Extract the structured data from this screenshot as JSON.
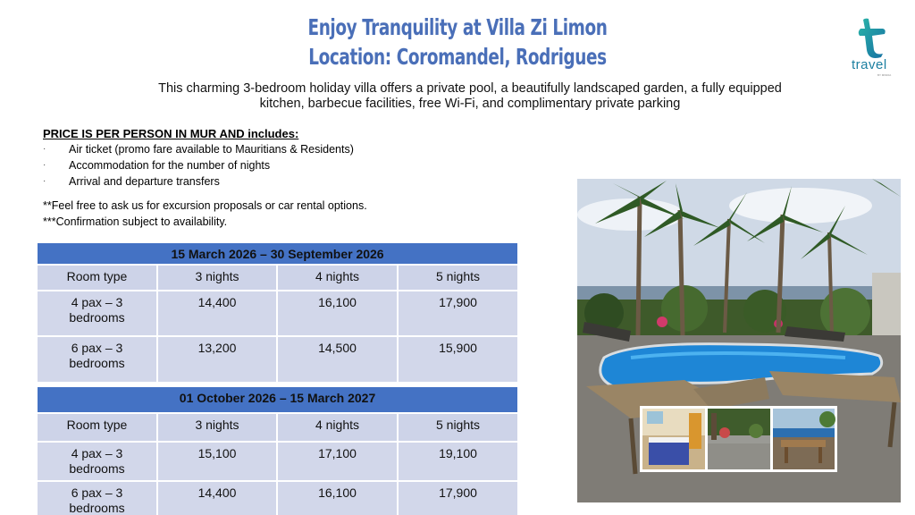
{
  "header": {
    "title_line1": "Enjoy Tranquility at Villa Zi Limon",
    "title_line2": "Location: Coromandel, Rodrigues"
  },
  "logo": {
    "text": "travel",
    "subtext": "BY MINDIA",
    "icon": "travel-logo-icon"
  },
  "description": "This charming 3-bedroom holiday villa offers a private pool, a beautifully landscaped garden, a fully equipped kitchen, barbecue facilities, free Wi-Fi, and complimentary private parking",
  "includes": {
    "heading": "PRICE IS PER PERSON IN MUR AND includes:",
    "bullet": "·",
    "items": [
      "Air ticket (promo fare available to Mauritians & Residents)",
      "Accommodation for the number of nights",
      "Arrival and departure transfers"
    ]
  },
  "notes": {
    "excursion": "**Feel free to ask us for excursion proposals or car rental options.",
    "confirmation": "***Confirmation subject to availability."
  },
  "tables": [
    {
      "period": "15 March 2026 – 30 September 2026",
      "headers": [
        "Room type",
        "3 nights",
        "4 nights",
        "5 nights"
      ],
      "rows": [
        {
          "room_line1": "4 pax – 3",
          "room_line2": "bedrooms",
          "n3": "14,400",
          "n4": "16,100",
          "n5": "17,900"
        },
        {
          "room_line1": "6 pax – 3",
          "room_line2": "bedrooms",
          "n3": "13,200",
          "n4": "14,500",
          "n5": "15,900"
        }
      ]
    },
    {
      "period": "01 October 2026 – 15 March 2027",
      "headers": [
        "Room type",
        "3 nights",
        "4 nights",
        "5 nights"
      ],
      "rows": [
        {
          "room_line1": "4 pax – 3",
          "room_line2": "bedrooms",
          "n3": "15,100",
          "n4": "17,100",
          "n5": "19,100"
        },
        {
          "room_line1": "6 pax – 3",
          "room_line2": "bedrooms",
          "n3": "14,400",
          "n4": "16,100",
          "n5": "17,900"
        }
      ]
    }
  ],
  "colors": {
    "title": "#4a6fb8",
    "table_header": "#4472c4",
    "table_cell": "#d2d7ea",
    "logo": "#1b7fa0"
  }
}
